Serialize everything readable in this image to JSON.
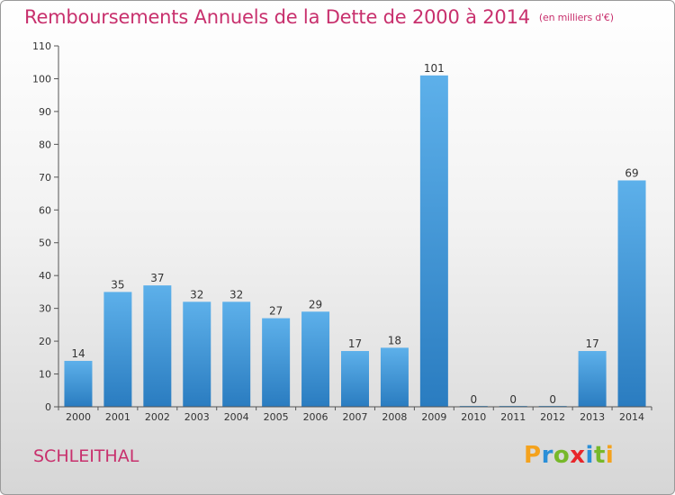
{
  "title": "Remboursements Annuels de la Dette de 2000 à 2014",
  "unit": "(en milliers d'€)",
  "place": "SCHLEITHAL",
  "logo": {
    "letters": [
      "P",
      "r",
      "o",
      "x",
      "i",
      "t",
      "i"
    ],
    "colors": [
      "#f4a21d",
      "#2a8fd8",
      "#77b82a",
      "#e8262a",
      "#2a8fd8",
      "#77b82a",
      "#f4a21d"
    ]
  },
  "chart_data": {
    "type": "bar",
    "categories": [
      "2000",
      "2001",
      "2002",
      "2003",
      "2004",
      "2005",
      "2006",
      "2007",
      "2008",
      "2009",
      "2010",
      "2011",
      "2012",
      "2013",
      "2014"
    ],
    "values": [
      14,
      35,
      37,
      32,
      32,
      27,
      29,
      17,
      18,
      101,
      0,
      0,
      0,
      17,
      69
    ],
    "data_labels": [
      "14",
      "35",
      "37",
      "32",
      "32",
      "27",
      "29",
      "17",
      "18",
      "101",
      "0",
      "0",
      "0",
      "17",
      "69"
    ],
    "yticks": [
      "0",
      "10",
      "20",
      "30",
      "40",
      "50",
      "60",
      "70",
      "80",
      "90",
      "100",
      "110"
    ],
    "ylim": [
      0,
      110
    ],
    "grid": false,
    "bar_color": "#4a9fe0",
    "title": "Remboursements Annuels de la Dette de 2000 à 2014"
  }
}
